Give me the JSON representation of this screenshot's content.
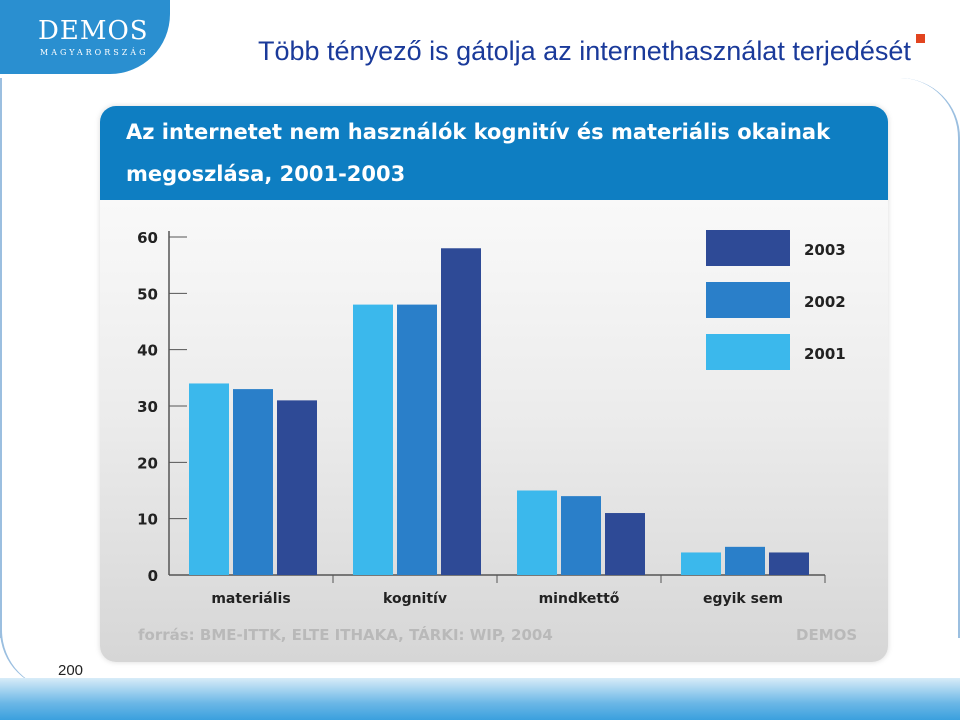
{
  "logo": {
    "main": "DEMOS",
    "sub": "MAGYARORSZÁG"
  },
  "slide_title": "Több tényező is gátolja az internethasználat terjedését",
  "footer_text": "200",
  "colors": {
    "y2001": "#3bb8ec",
    "y2002": "#2a7fc9",
    "y2003": "#2e4a96",
    "header": "#0e7ec2",
    "accent": "#e2441f"
  },
  "chart_data": {
    "type": "bar",
    "title_line1": "Az internetet nem használók kognitív és materiális okainak",
    "title_line2": "megoszlása, 2001-2003",
    "categories": [
      "materiális",
      "kognitív",
      "mindkettő",
      "egyik sem"
    ],
    "series": [
      {
        "name": "2001",
        "values": [
          34,
          48,
          15,
          4
        ]
      },
      {
        "name": "2002",
        "values": [
          33,
          48,
          14,
          5
        ]
      },
      {
        "name": "2003",
        "values": [
          31,
          58,
          11,
          4
        ]
      }
    ],
    "ylim": [
      0,
      60
    ],
    "yticks": [
      "0",
      "10",
      "20",
      "30",
      "40",
      "50",
      "60"
    ],
    "legend_position": "top-right",
    "legend_order": [
      "2003",
      "2002",
      "2001"
    ],
    "source": "forrás: BME-ITTK, ELTE ITHAKA, TÁRKI: WIP, 2004",
    "source_mark": "DEMOS"
  }
}
